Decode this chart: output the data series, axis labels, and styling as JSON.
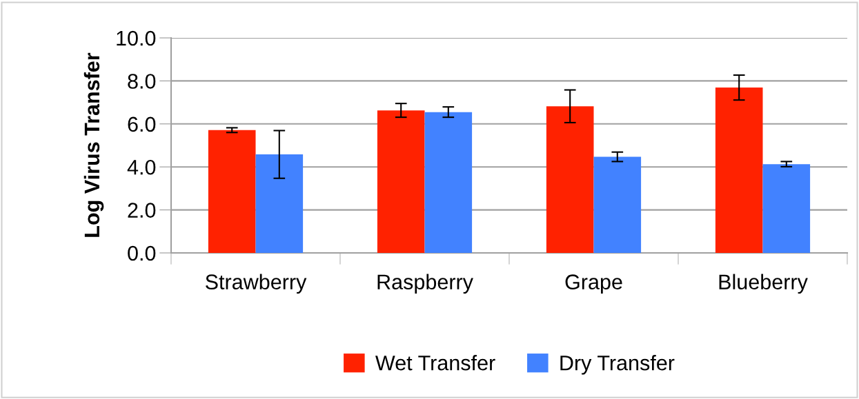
{
  "chart_data": {
    "type": "bar",
    "ylabel": "Log Virus Transfer",
    "categories": [
      "Strawberry",
      "Raspberry",
      "Grape",
      "Blueberry"
    ],
    "series": [
      {
        "name": "Wet Transfer",
        "color": "#ff2200",
        "values": [
          5.71,
          6.63,
          6.82,
          7.69
        ],
        "errors": [
          0.11,
          0.32,
          0.76,
          0.58
        ]
      },
      {
        "name": "Dry Transfer",
        "color": "#4282ff",
        "values": [
          4.58,
          6.55,
          4.47,
          4.13
        ],
        "errors": [
          1.11,
          0.24,
          0.22,
          0.12
        ]
      }
    ],
    "ylim": [
      0,
      10
    ],
    "yticks": [
      {
        "value": 0,
        "label": "0.0"
      },
      {
        "value": 2,
        "label": "2.0"
      },
      {
        "value": 4,
        "label": "4.0"
      },
      {
        "value": 6,
        "label": "6.0"
      },
      {
        "value": 8,
        "label": "8.0"
      },
      {
        "value": 10,
        "label": "10.0"
      }
    ],
    "grid": "y",
    "legend": "bottom"
  }
}
